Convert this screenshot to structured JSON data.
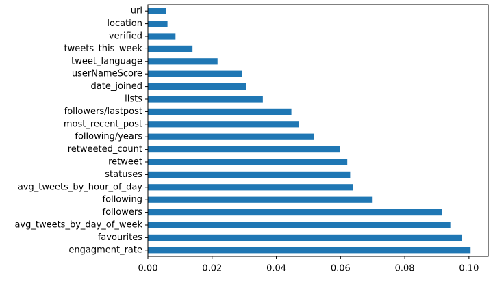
{
  "chart_data": {
    "type": "bar",
    "orientation": "horizontal",
    "title": "",
    "xlabel": "",
    "ylabel": "",
    "xlim": [
      0.0,
      0.106
    ],
    "xticks": [
      "0.00",
      "0.02",
      "0.04",
      "0.06",
      "0.08",
      "0.10"
    ],
    "xtick_values": [
      0.0,
      0.02,
      0.04,
      0.06,
      0.08,
      0.1
    ],
    "grid": false,
    "bar_color": "#1f77b4",
    "categories": [
      "engagment_rate",
      "favourites",
      "avg_tweets_by_day_of_week",
      "followers",
      "following",
      "avg_tweets_by_hour_of_day",
      "statuses",
      "retweet",
      "retweeted_count",
      "following/years",
      "most_recent_post",
      "followers/lastpost",
      "lists",
      "date_joined",
      "userNameScore",
      "tweet_language",
      "tweets_this_week",
      "verified",
      "location",
      "url"
    ],
    "values": [
      0.1005,
      0.0978,
      0.0942,
      0.0915,
      0.07,
      0.0638,
      0.063,
      0.0621,
      0.0598,
      0.0518,
      0.0471,
      0.0447,
      0.0358,
      0.0307,
      0.0294,
      0.0217,
      0.0139,
      0.0086,
      0.0061,
      0.0056
    ]
  }
}
